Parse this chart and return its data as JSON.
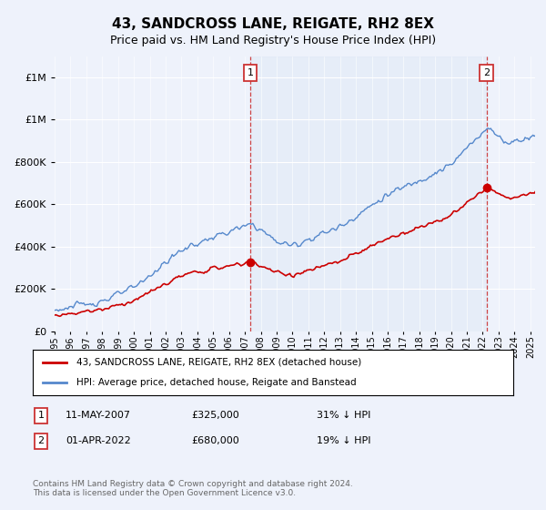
{
  "title": "43, SANDCROSS LANE, REIGATE, RH2 8EX",
  "subtitle": "Price paid vs. HM Land Registry's House Price Index (HPI)",
  "legend_line1": "43, SANDCROSS LANE, REIGATE, RH2 8EX (detached house)",
  "legend_line2": "HPI: Average price, detached house, Reigate and Banstead",
  "footnote": "Contains HM Land Registry data © Crown copyright and database right 2024.\nThis data is licensed under the Open Government Licence v3.0.",
  "marker1_date": "11-MAY-2007",
  "marker1_price": 325000,
  "marker1_note": "31% ↓ HPI",
  "marker2_date": "01-APR-2022",
  "marker2_price": 680000,
  "marker2_note": "19% ↓ HPI",
  "ylim": [
    0,
    1300000
  ],
  "xlim_min": 1995.0,
  "xlim_max": 2025.3,
  "background_color": "#eef2fb",
  "plot_bg_color": "#eef2fb",
  "shade_color": "#d8e6f5",
  "hpi_color": "#5588cc",
  "price_color": "#cc0000",
  "marker_color": "#cc0000",
  "dashed_color": "#cc3333",
  "grid_color": "#ffffff",
  "title_fontsize": 11,
  "subtitle_fontsize": 9
}
